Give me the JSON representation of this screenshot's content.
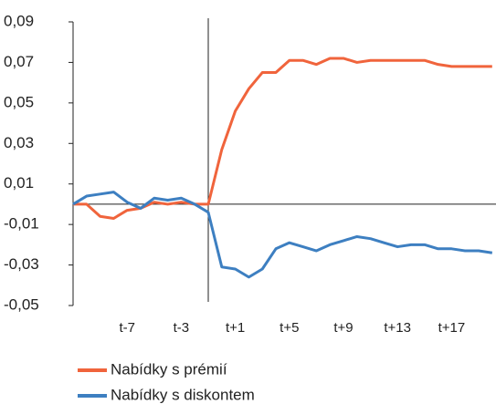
{
  "chart_data": {
    "type": "line",
    "categories": [
      null,
      null,
      null,
      null,
      "t-7",
      null,
      null,
      null,
      "t-3",
      null,
      null,
      null,
      "t+1",
      null,
      null,
      null,
      "t+5",
      null,
      null,
      null,
      "t+9",
      null,
      null,
      null,
      "t+13",
      null,
      null,
      null,
      "t+17",
      null,
      null,
      null
    ],
    "series": [
      {
        "name": "Nabídky s prémií",
        "color": "#f0643c",
        "values": [
          0,
          0,
          -0.006,
          -0.007,
          -0.003,
          -0.002,
          0.001,
          0,
          0.001,
          0,
          0,
          0.027,
          0.046,
          0.057,
          0.065,
          0.065,
          0.071,
          0.071,
          0.069,
          0.072,
          0.072,
          0.07,
          0.071,
          0.071,
          0.071,
          0.071,
          0.071,
          0.069,
          0.068,
          0.068,
          0.068,
          0.068
        ]
      },
      {
        "name": "Nabídky s diskontem",
        "color": "#3d7fc1",
        "values": [
          0,
          0.004,
          0.005,
          0.006,
          0.001,
          -0.002,
          0.003,
          0.002,
          0.003,
          0,
          -0.004,
          -0.031,
          -0.032,
          -0.036,
          -0.032,
          -0.022,
          -0.019,
          -0.021,
          -0.023,
          -0.02,
          -0.018,
          -0.016,
          -0.017,
          -0.019,
          -0.021,
          -0.02,
          -0.02,
          -0.022,
          -0.022,
          -0.023,
          -0.023,
          -0.024
        ]
      }
    ],
    "ylim": [
      -0.05,
      0.09
    ],
    "yticks": [
      {
        "value": -0.05,
        "label": "-0,05"
      },
      {
        "value": -0.03,
        "label": "-0,03"
      },
      {
        "value": -0.01,
        "label": "-0,01"
      },
      {
        "value": 0.01,
        "label": "0,01"
      },
      {
        "value": 0.03,
        "label": "0,03"
      },
      {
        "value": 0.05,
        "label": "0,05"
      },
      {
        "value": 0.07,
        "label": "0,07"
      },
      {
        "value": 0.09,
        "label": "0,09"
      }
    ],
    "legend": "bottom-left"
  }
}
